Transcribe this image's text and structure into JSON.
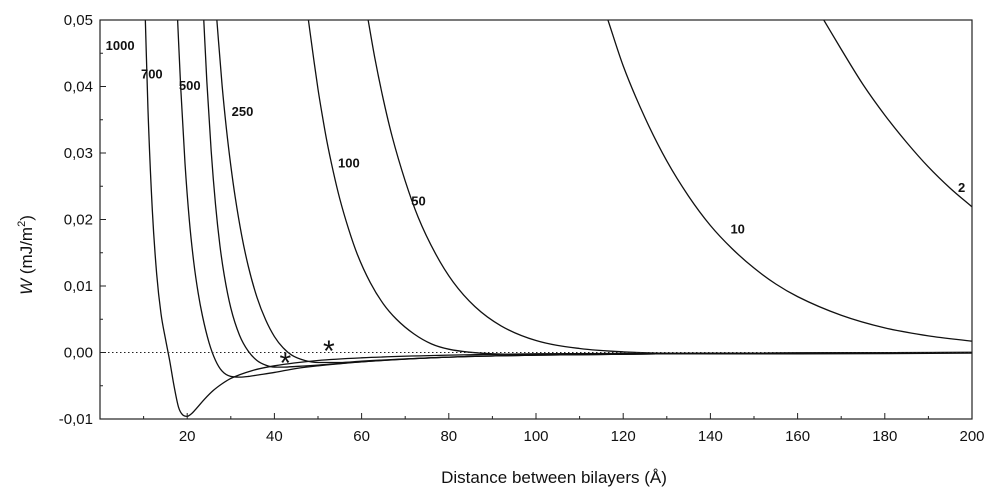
{
  "chart_data": {
    "type": "line",
    "xlabel": "Distance between bilayers (Å)",
    "ylabel": {
      "prefix": "W",
      "rest": " (mJ/m",
      "sup": "2",
      "close": ")"
    },
    "xlim": [
      0,
      200
    ],
    "ylim": [
      -0.01,
      0.05
    ],
    "x_ticks": [
      20,
      40,
      60,
      80,
      100,
      120,
      140,
      160,
      180,
      200
    ],
    "x_tick_labels": [
      "20",
      "40",
      "60",
      "80",
      "100",
      "120",
      "140",
      "160",
      "180",
      "200"
    ],
    "y_ticks": [
      -0.01,
      0.0,
      0.01,
      0.02,
      0.03,
      0.04,
      0.05
    ],
    "y_tick_labels": [
      "-0,01",
      "0,00",
      "0,01",
      "0,02",
      "0,03",
      "0,04",
      "0,05"
    ],
    "zero_line": {
      "y": 0,
      "style": "dotted"
    },
    "series": [
      {
        "name": "1000",
        "x": [
          10.4,
          11,
          12,
          13,
          14,
          15,
          16,
          17,
          18,
          19,
          20,
          21,
          22,
          24,
          26,
          28,
          30,
          35,
          40,
          50,
          60,
          80,
          100,
          150,
          200
        ],
        "y": [
          0.05,
          0.0366,
          0.0214,
          0.0118,
          0.0058,
          0.0021,
          -0.0013,
          -0.0051,
          -0.0082,
          -0.0094,
          -0.0096,
          -0.0092,
          -0.0085,
          -0.007,
          -0.0057,
          -0.0047,
          -0.0039,
          -0.0027,
          -0.002,
          -0.0012,
          -0.0008,
          -0.0004,
          -0.0002,
          -0.0001,
          0
        ]
      },
      {
        "name": "700",
        "x": [
          17.8,
          18.5,
          19.5,
          20.5,
          21.5,
          22.5,
          23.5,
          25,
          26.5,
          28,
          30,
          32,
          34,
          36,
          40,
          45,
          50,
          60,
          80,
          100,
          150,
          200
        ],
        "y": [
          0.05,
          0.04,
          0.0284,
          0.0198,
          0.0136,
          0.009,
          0.0055,
          0.0015,
          -0.0012,
          -0.0028,
          -0.0036,
          -0.0037,
          -0.0036,
          -0.0034,
          -0.003,
          -0.0024,
          -0.002,
          -0.0014,
          -0.0007,
          -0.0004,
          -0.0001,
          0
        ]
      },
      {
        "name": "500",
        "x": [
          23.8,
          24.5,
          25.5,
          26.5,
          27.5,
          28.5,
          30,
          32,
          34,
          36,
          38,
          40,
          42,
          45,
          50,
          60,
          80,
          100,
          150,
          200
        ],
        "y": [
          0.05,
          0.0408,
          0.0303,
          0.0222,
          0.0161,
          0.0116,
          0.0067,
          0.0026,
          0.0002,
          -0.0012,
          -0.0019,
          -0.0022,
          -0.0022,
          -0.0021,
          -0.0019,
          -0.0014,
          -0.0007,
          -0.0004,
          -0.0001,
          0
        ]
      },
      {
        "name": "250",
        "x": [
          26.8,
          28,
          29,
          30,
          31,
          32.5,
          34,
          36,
          38,
          40,
          42,
          44,
          47,
          50,
          55,
          60,
          80,
          100,
          150,
          200
        ],
        "y": [
          0.05,
          0.0402,
          0.0336,
          0.0281,
          0.0234,
          0.0176,
          0.013,
          0.0083,
          0.0049,
          0.0024,
          0.0007,
          -0.0004,
          -0.0012,
          -0.0015,
          -0.0015,
          -0.0013,
          -0.0007,
          -0.0004,
          -0.0001,
          0
        ]
      },
      {
        "name": "100",
        "x": [
          47.8,
          49,
          50,
          51,
          52,
          53.5,
          55,
          57,
          59,
          62,
          65,
          68,
          72,
          76,
          80,
          90,
          100,
          120,
          150,
          200
        ],
        "y": [
          0.05,
          0.0442,
          0.0396,
          0.0356,
          0.0319,
          0.0272,
          0.0231,
          0.0186,
          0.0148,
          0.0105,
          0.0073,
          0.005,
          0.0028,
          0.0013,
          0.0005,
          -0.0002,
          -0.0003,
          -0.0002,
          -0.0001,
          0
        ]
      },
      {
        "name": "50",
        "x": [
          61.5,
          63,
          65,
          67,
          70,
          73,
          77,
          81,
          86,
          92,
          100,
          110,
          120,
          140,
          160,
          200
        ],
        "y": [
          0.05,
          0.0444,
          0.038,
          0.0325,
          0.0258,
          0.0203,
          0.0148,
          0.0106,
          0.0069,
          0.004,
          0.0018,
          0.0006,
          0.0001,
          -0.0002,
          -0.0002,
          -0.0001
        ]
      },
      {
        "name": "10",
        "x": [
          116.5,
          120,
          125,
          130,
          135,
          140,
          145,
          150,
          155,
          160,
          170,
          180,
          190,
          200
        ],
        "y": [
          0.05,
          0.0431,
          0.0353,
          0.0288,
          0.0235,
          0.0191,
          0.0156,
          0.0127,
          0.0103,
          0.0084,
          0.0056,
          0.0037,
          0.0025,
          0.0017
        ]
      },
      {
        "name": "2",
        "x": [
          166,
          170,
          175,
          180,
          185,
          190,
          195,
          200
        ],
        "y": [
          0.05,
          0.0456,
          0.0403,
          0.0357,
          0.0316,
          0.0279,
          0.0247,
          0.0219
        ]
      }
    ],
    "annotations": [
      {
        "text": "1000",
        "x": 1.3,
        "y": 0.0455
      },
      {
        "text": "700",
        "x": 9.4,
        "y": 0.0412
      },
      {
        "text": "500",
        "x": 18.1,
        "y": 0.0395
      },
      {
        "text": "250",
        "x": 30.2,
        "y": 0.0356
      },
      {
        "text": "100",
        "x": 54.6,
        "y": 0.0278
      },
      {
        "text": "50",
        "x": 71.4,
        "y": 0.0221
      },
      {
        "text": "10",
        "x": 144.6,
        "y": 0.0179
      },
      {
        "text": "2",
        "x": 196.8,
        "y": 0.0241
      }
    ],
    "markers": [
      {
        "text": "*",
        "x": 42.5,
        "y": -0.0014
      },
      {
        "text": "*",
        "x": 52.5,
        "y": 0.0004
      }
    ]
  }
}
